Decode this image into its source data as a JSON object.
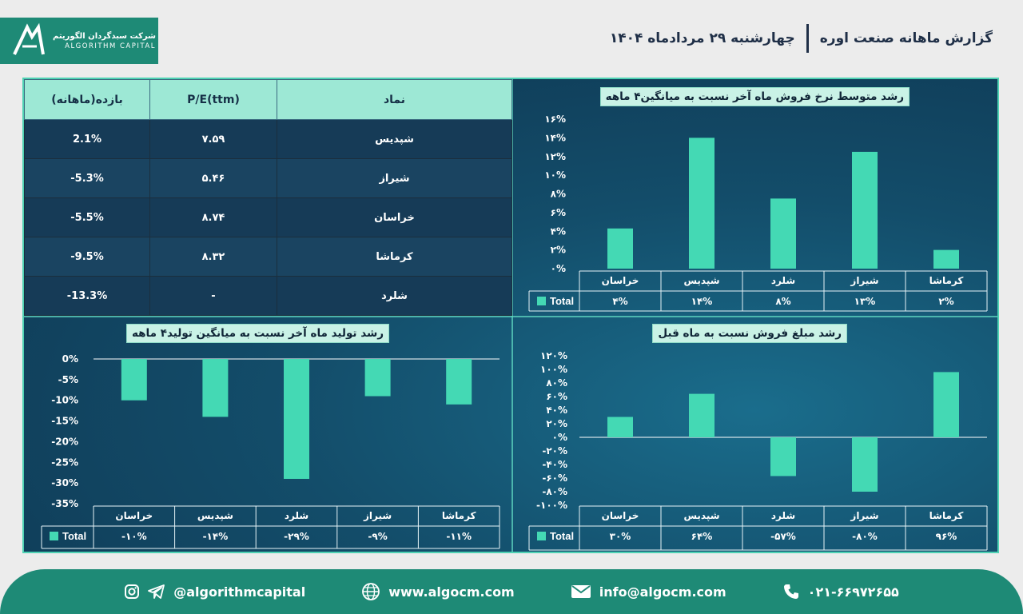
{
  "header": {
    "title": "گزارش ماهانه صنعت اوره",
    "date": "چهارشنبه ۲۹ مردادماه ۱۴۰۴",
    "logo_fa": "شرکت سبدگردان الگوریتم",
    "logo_en": "ALGORITHM CAPITAL"
  },
  "table": {
    "headers": [
      "نماد",
      "P/E(ttm)",
      "بازده(ماهانه)"
    ],
    "rows": [
      {
        "symbol": "شپدیس",
        "pe": "۷.۵۹",
        "ret": "2.1%"
      },
      {
        "symbol": "شیراز",
        "pe": "۵.۴۶",
        "ret": "-5.3%"
      },
      {
        "symbol": "خراسان",
        "pe": "۸.۷۴",
        "ret": "-5.5%"
      },
      {
        "symbol": "کرماشا",
        "pe": "۸.۳۲",
        "ret": "-9.5%"
      },
      {
        "symbol": "شلرد",
        "pe": "-",
        "ret": "-13.3%"
      }
    ]
  },
  "chart_data": [
    {
      "type": "bar",
      "title": "رشد متوسط نرخ فروش ماه آخر نسبت به میانگین۴ ماهه",
      "categories": [
        "خراسان",
        "شپدیس",
        "شلرد",
        "شیراز",
        "کرماشا"
      ],
      "values": [
        4.3,
        14.0,
        7.5,
        12.5,
        2.0
      ],
      "value_labels": [
        "۴%",
        "۱۴%",
        "۸%",
        "۱۳%",
        "۲%"
      ],
      "series_name": "Total",
      "ylim": [
        0,
        16
      ],
      "yticks": [
        "۰%",
        "۲%",
        "۴%",
        "۶%",
        "۸%",
        "۱۰%",
        "۱۲%",
        "۱۴%",
        "۱۶%"
      ],
      "ytick_values": [
        0,
        2,
        4,
        6,
        8,
        10,
        12,
        14,
        16
      ],
      "color": "#44d9b4"
    },
    {
      "type": "bar",
      "title": "رشد تولید ماه آخر نسبت به میانگین تولید۴ ماهه",
      "categories": [
        "خراسان",
        "شپدیس",
        "شلرد",
        "شیراز",
        "کرماشا"
      ],
      "values": [
        -10,
        -14,
        -29,
        -9,
        -11
      ],
      "value_labels": [
        "-۱۰%",
        "-۱۴%",
        "-۲۹%",
        "-۹%",
        "-۱۱%"
      ],
      "series_name": "Total",
      "ylim": [
        -35,
        0
      ],
      "yticks": [
        "0%",
        "-5%",
        "-10%",
        "-15%",
        "-20%",
        "-25%",
        "-30%",
        "-35%"
      ],
      "ytick_values": [
        0,
        -5,
        -10,
        -15,
        -20,
        -25,
        -30,
        -35
      ],
      "color": "#44d9b4"
    },
    {
      "type": "bar",
      "title": "رشد مبلغ فروش نسبت به ماه قبل",
      "categories": [
        "خراسان",
        "شپدیس",
        "شلرد",
        "شیراز",
        "کرماشا"
      ],
      "values": [
        30,
        64,
        -57,
        -80,
        96
      ],
      "value_labels": [
        "۳۰%",
        "۶۴%",
        "-۵۷%",
        "-۸۰%",
        "۹۶%"
      ],
      "series_name": "Total",
      "ylim": [
        -100,
        120
      ],
      "yticks": [
        "۱۲۰%",
        "۱۰۰%",
        "۸۰%",
        "۶۰%",
        "۴۰%",
        "۲۰%",
        "۰%",
        "-۲۰%",
        "-۴۰%",
        "-۶۰%",
        "-۸۰%",
        "-۱۰۰%"
      ],
      "ytick_values": [
        120,
        100,
        80,
        60,
        40,
        20,
        0,
        -20,
        -40,
        -60,
        -80,
        -100
      ],
      "color": "#44d9b4"
    }
  ],
  "footer": {
    "social": "@algorithmcapital",
    "website": "www.algocm.com",
    "email": "info@algocm.com",
    "phone": "۰۲۱-۶۶۹۷۲۶۵۵"
  },
  "colors": {
    "brand": "#1e8a76",
    "accent": "#44d9b4",
    "header_text": "#1f2f47"
  }
}
